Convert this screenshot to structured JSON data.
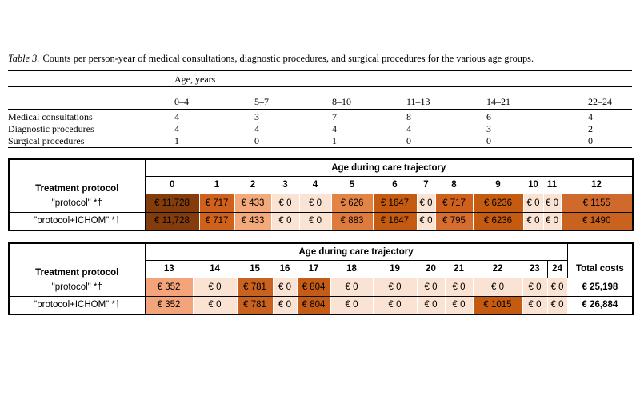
{
  "caption": {
    "label": "Table 3.",
    "text": "Counts per person-year of medical consultations, diagnostic procedures, and surgical procedures for the various age groups."
  },
  "table3": {
    "header": "Age, years",
    "columns": [
      "0–4",
      "5–7",
      "8–10",
      "11–13",
      "14–21",
      "22–24"
    ],
    "rows": [
      [
        "Medical consultations",
        "4",
        "3",
        "7",
        "8",
        "6",
        "4"
      ],
      [
        "Diagnostic procedures",
        "4",
        "4",
        "4",
        "4",
        "3",
        "2"
      ],
      [
        "Surgical procedures",
        "1",
        "0",
        "1",
        "0",
        "0",
        "0"
      ]
    ]
  },
  "cost_tables": [
    {
      "row_header": "Treatment protocol",
      "group_header": "Age during care trajectory",
      "columns": [
        "0",
        "1",
        "2",
        "3",
        "4",
        "5",
        "6",
        "7",
        "8",
        "9",
        "10",
        "11",
        "12"
      ],
      "rows": [
        {
          "label": "\"protocol\" *†",
          "cells": [
            "€ 11,728",
            "€ 717",
            "€ 433",
            "€ 0",
            "€ 0",
            "€ 626",
            "€ 1647",
            "€ 0",
            "€ 717",
            "€ 6236",
            "€ 0",
            "€ 0",
            "€ 1155"
          ]
        },
        {
          "label": "\"protocol+ICHOM\" *†",
          "cells": [
            "€ 11,728",
            "€ 717",
            "€ 433",
            "€ 0",
            "€ 0",
            "€ 883",
            "€ 1647",
            "€ 0",
            "€ 795",
            "€ 6236",
            "€ 0",
            "€ 0",
            "€ 1490"
          ]
        }
      ]
    },
    {
      "row_header": "Treatment protocol",
      "group_header": "Age during care trajectory",
      "columns": [
        "13",
        "14",
        "15",
        "16",
        "17",
        "18",
        "19",
        "20",
        "21",
        "22",
        "23",
        "24",
        "Total costs"
      ],
      "rows": [
        {
          "label": "\"protocol\" *†",
          "cells": [
            "€ 352",
            "€ 0",
            "€ 781",
            "€ 0",
            "€ 804",
            "€ 0",
            "€ 0",
            "€ 0",
            "€ 0",
            "€ 0",
            "€ 0",
            "€ 0",
            "€ 25,198"
          ]
        },
        {
          "label": "\"protocol+ICHOM\" *†",
          "cells": [
            "€ 352",
            "€ 0",
            "€ 781",
            "€ 0",
            "€ 804",
            "€ 0",
            "€ 0",
            "€ 0",
            "€ 0",
            "€ 1015",
            "€ 0",
            "€ 0",
            "€ 26,884"
          ]
        }
      ]
    }
  ]
}
